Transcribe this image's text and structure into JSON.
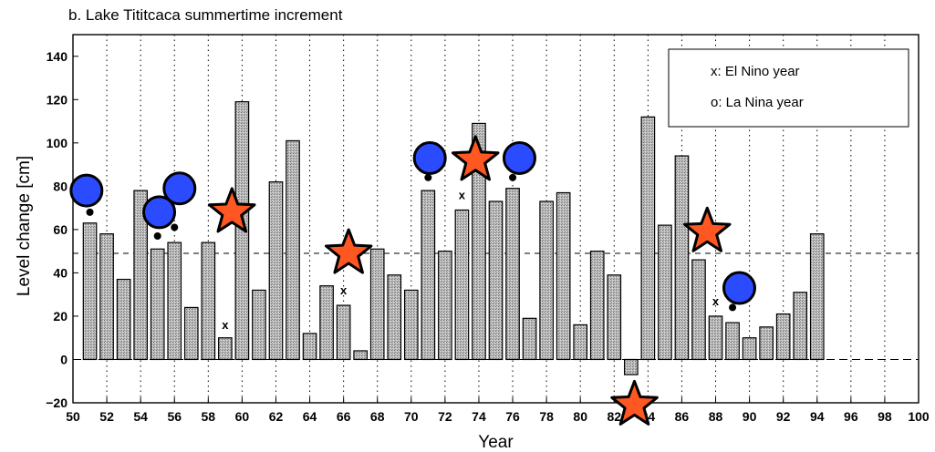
{
  "chart_data": {
    "type": "bar",
    "title": "b. Lake Tititcaca summertime increment",
    "xlabel": "Year",
    "ylabel": "Level change [cm]",
    "xlim": [
      50,
      100
    ],
    "ylim": [
      -20,
      150
    ],
    "x_ticks": [
      "50",
      "52",
      "54",
      "56",
      "58",
      "60",
      "62",
      "64",
      "66",
      "68",
      "70",
      "72",
      "74",
      "76",
      "78",
      "80",
      "82",
      "84",
      "86",
      "88",
      "90",
      "92",
      "94",
      "96",
      "98",
      "100"
    ],
    "y_ticks": [
      "−20",
      "0",
      "20",
      "40",
      "60",
      "80",
      "100",
      "120",
      "140"
    ],
    "grid": "vertical dotted",
    "mean_line": 49,
    "series": [
      {
        "x": [
          51,
          52,
          53,
          54,
          55,
          56,
          57,
          58,
          59,
          60,
          61,
          62,
          63,
          64,
          65,
          66,
          67,
          68,
          69,
          70,
          71,
          72,
          73,
          74,
          75,
          76,
          77,
          78,
          79,
          80,
          81,
          82,
          83,
          84,
          85,
          86,
          87,
          88,
          89,
          90,
          91,
          92,
          93,
          94
        ],
        "values": [
          63,
          58,
          37,
          78,
          51,
          54,
          24,
          54,
          10,
          119,
          32,
          82,
          101,
          12,
          34,
          25,
          4,
          51,
          39,
          32,
          78,
          50,
          69,
          109,
          73,
          79,
          19,
          73,
          77,
          16,
          50,
          39,
          -7,
          112,
          62,
          94,
          46,
          20,
          17,
          10,
          15,
          21,
          31,
          58
        ]
      }
    ],
    "legend": {
      "position": "top-right",
      "entries": [
        "x: El Nino year",
        "o: La Nina year"
      ]
    },
    "el_nino_marks": [
      {
        "x": 59,
        "y": 14,
        "label": "x"
      },
      {
        "x": 66,
        "y": 30,
        "label": "x"
      },
      {
        "x": 73,
        "y": 74,
        "label": "x"
      },
      {
        "x": 88,
        "y": 25,
        "label": "x"
      }
    ],
    "la_nina_marks": [
      {
        "x": 51,
        "y": 68
      },
      {
        "x": 55,
        "y": 57
      },
      {
        "x": 56,
        "y": 61
      },
      {
        "x": 71,
        "y": 84
      },
      {
        "x": 76,
        "y": 84
      },
      {
        "x": 89,
        "y": 24
      }
    ],
    "stars": [
      {
        "x": 59.4,
        "y": 68,
        "color": "#FF5722"
      },
      {
        "x": 66.3,
        "y": 49,
        "color": "#FF5722"
      },
      {
        "x": 73.8,
        "y": 92,
        "color": "#FF5722"
      },
      {
        "x": 87.5,
        "y": 59,
        "color": "#FF5722"
      },
      {
        "x": 83.2,
        "y": -21,
        "color": "#FF5722"
      }
    ],
    "circles": [
      {
        "x": 50.8,
        "y": 78,
        "color": "#2B4BFF"
      },
      {
        "x": 55.1,
        "y": 68,
        "color": "#2B4BFF"
      },
      {
        "x": 56.3,
        "y": 79,
        "color": "#2B4BFF"
      },
      {
        "x": 71.1,
        "y": 93,
        "color": "#2B4BFF"
      },
      {
        "x": 76.4,
        "y": 93,
        "color": "#2B4BFF"
      },
      {
        "x": 89.4,
        "y": 33,
        "color": "#2B4BFF"
      }
    ]
  }
}
